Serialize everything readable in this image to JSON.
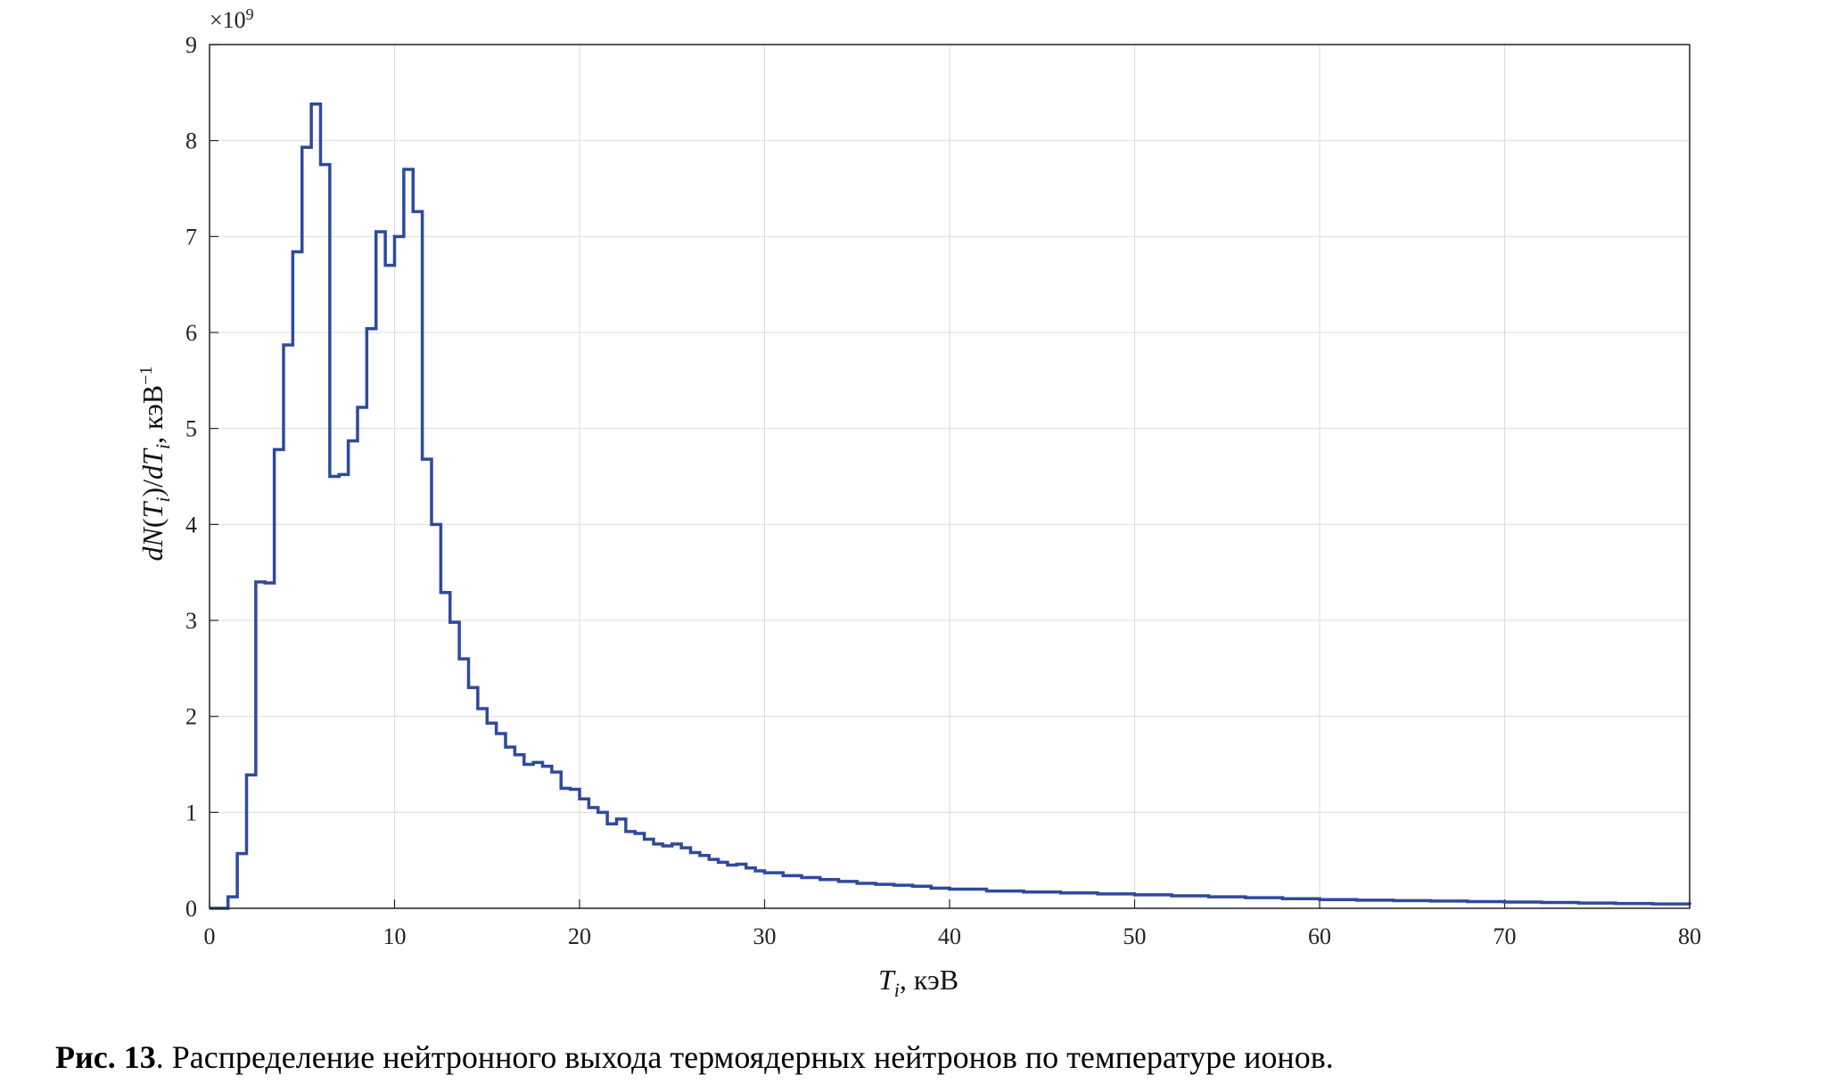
{
  "chart_data": {
    "type": "line",
    "step": true,
    "x_exponent_label": "",
    "y_multiplier": "×10",
    "y_multiplier_exp": "9",
    "xlabel": {
      "var": "T",
      "sub": "i",
      "unit": ", кэВ"
    },
    "ylabel": {
      "p1": "d",
      "p2": "N",
      "p3": "(",
      "p4": "T",
      "p5": "i",
      "p6": ")/",
      "p7": "d",
      "p8": "T",
      "p9": "i",
      "p10": ", кэВ",
      "p11": "−1"
    },
    "xlim": [
      0,
      80
    ],
    "ylim": [
      0,
      9
    ],
    "xticks": [
      0,
      10,
      20,
      30,
      40,
      50,
      60,
      70,
      80
    ],
    "yticks": [
      0,
      1,
      2,
      3,
      4,
      5,
      6,
      7,
      8,
      9
    ],
    "grid": true,
    "line_color": "#2e4a9e",
    "bin_width": 0.5,
    "x": [
      0,
      0.5,
      1.0,
      1.5,
      2.0,
      2.5,
      3.0,
      3.5,
      4.0,
      4.5,
      5.0,
      5.5,
      6.0,
      6.5,
      7.0,
      7.5,
      8.0,
      8.5,
      9.0,
      9.5,
      10.0,
      10.5,
      11.0,
      11.5,
      12.0,
      12.5,
      13.0,
      13.5,
      14.0,
      14.5,
      15.0,
      15.5,
      16.0,
      16.5,
      17.0,
      17.5,
      18.0,
      18.5,
      19.0,
      19.5,
      20.0,
      20.5,
      21.0,
      21.5,
      22.0,
      22.5,
      23.0,
      23.5,
      24.0,
      24.5,
      25.0,
      25.5,
      26.0,
      26.5,
      27.0,
      27.5,
      28.0,
      28.5,
      29.0,
      29.5,
      30,
      31,
      32,
      33,
      34,
      35,
      36,
      37,
      38,
      39,
      40,
      42,
      44,
      46,
      48,
      50,
      52,
      54,
      56,
      58,
      60,
      62,
      64,
      66,
      68,
      70,
      72,
      74,
      76,
      78,
      80
    ],
    "y": [
      0,
      0,
      0.12,
      0.57,
      1.39,
      3.4,
      3.39,
      4.78,
      5.87,
      6.84,
      7.93,
      8.38,
      7.75,
      4.5,
      4.52,
      4.87,
      5.22,
      6.04,
      7.05,
      6.7,
      7.0,
      7.7,
      7.26,
      4.68,
      4.0,
      3.29,
      2.98,
      2.6,
      2.3,
      2.08,
      1.93,
      1.82,
      1.68,
      1.6,
      1.5,
      1.52,
      1.48,
      1.42,
      1.25,
      1.24,
      1.14,
      1.05,
      1.0,
      0.88,
      0.93,
      0.8,
      0.78,
      0.72,
      0.67,
      0.65,
      0.67,
      0.63,
      0.58,
      0.55,
      0.51,
      0.48,
      0.45,
      0.46,
      0.42,
      0.39,
      0.37,
      0.34,
      0.32,
      0.3,
      0.28,
      0.26,
      0.25,
      0.24,
      0.23,
      0.21,
      0.2,
      0.18,
      0.17,
      0.16,
      0.15,
      0.14,
      0.13,
      0.12,
      0.11,
      0.1,
      0.09,
      0.085,
      0.08,
      0.075,
      0.07,
      0.065,
      0.06,
      0.055,
      0.05,
      0.045,
      0.04
    ]
  },
  "caption": {
    "number": "Рис. 13",
    "text": ". Распределение нейтронного выхода термоядерных нейтронов по температуре ионов."
  }
}
